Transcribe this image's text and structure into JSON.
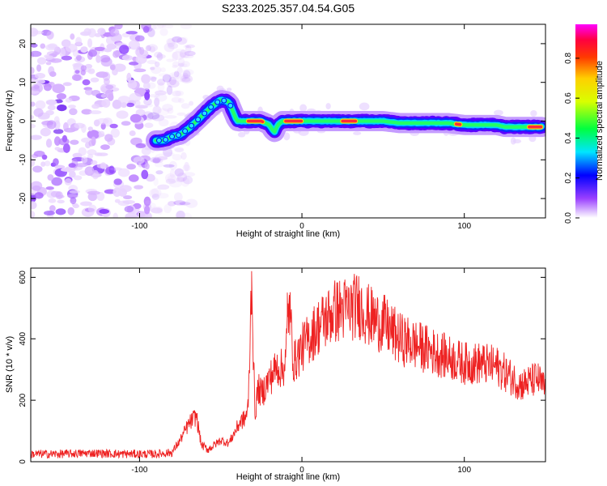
{
  "title": "S233.2025.357.04.54.G05",
  "chart_data": [
    {
      "type": "heatmap",
      "title": "S233.2025.357.04.54.G05",
      "xlabel": "Height of straight line (km)",
      "ylabel": "Frequency (Hz)",
      "xlim": [
        -167,
        150
      ],
      "ylim": [
        -25,
        25
      ],
      "xticks": [
        -100,
        0,
        100
      ],
      "xtick_labels": [
        "-100",
        "0",
        "100"
      ],
      "yticks": [
        -20,
        -10,
        0,
        10,
        20
      ],
      "ytick_labels": [
        "-20",
        "-10",
        "0",
        "10",
        "20"
      ],
      "ridge_x": [
        -90,
        -85,
        -80,
        -75,
        -70,
        -65,
        -60,
        -55,
        -50,
        -45,
        -40,
        -35,
        -30,
        -25,
        -20,
        -17,
        -15,
        -12,
        -10,
        -5,
        0,
        5,
        10,
        20,
        30,
        40,
        50,
        60,
        70,
        80,
        90,
        100,
        110,
        120,
        125,
        130,
        140,
        148
      ],
      "ridge_y": [
        -5,
        -5,
        -4,
        -3.5,
        -2,
        0,
        2,
        4,
        5.5,
        5,
        0,
        0,
        0,
        0,
        -1,
        -3,
        -1,
        0,
        0,
        0,
        0,
        0,
        0,
        0,
        0,
        0,
        0,
        -0.5,
        -0.5,
        -0.5,
        -0.5,
        -1,
        -1,
        -1,
        -1.5,
        -1.5,
        -1.5,
        -1.5
      ],
      "strong_segments": [
        [
          -33,
          -24
        ],
        [
          -10,
          0
        ],
        [
          25,
          33
        ],
        [
          95,
          98
        ],
        [
          140,
          148
        ]
      ],
      "noise_region": [
        -167,
        -80
      ],
      "colorbar": {
        "label": "Normalized spectral amplitude",
        "ticks": [
          0.0,
          0.2,
          0.4,
          0.6,
          0.8
        ],
        "tick_labels": [
          "0.0",
          "0.2",
          "0.4",
          "0.6",
          "0.8"
        ],
        "range": [
          0,
          0.97
        ],
        "colors": [
          "#ffffff",
          "#8000ff",
          "#0000ff",
          "#00ffff",
          "#00ff00",
          "#ffff00",
          "#ff8000",
          "#ff0000",
          "#ff00ff"
        ]
      }
    },
    {
      "type": "line",
      "xlabel": "Height of straight line (km)",
      "ylabel": "SNR (10 * v/v)",
      "xlim": [
        -167,
        150
      ],
      "ylim": [
        0,
        630
      ],
      "xticks": [
        -100,
        0,
        100
      ],
      "xtick_labels": [
        "-100",
        "0",
        "100"
      ],
      "yticks": [
        0,
        200,
        400,
        600
      ],
      "ytick_labels": [
        "0",
        "200",
        "400",
        "600"
      ],
      "color": "#ee2222",
      "series": [
        {
          "name": "SNR",
          "x": [
            -167,
            -150,
            -130,
            -110,
            -90,
            -80,
            -75,
            -70,
            -65,
            -62,
            -58,
            -55,
            -50,
            -45,
            -42,
            -40,
            -38,
            -35,
            -33,
            -31,
            -29,
            -27,
            -25,
            -20,
            -15,
            -12,
            -10,
            -8,
            -5,
            0,
            10,
            20,
            30,
            35,
            40,
            45,
            50,
            60,
            70,
            80,
            90,
            100,
            110,
            120,
            125,
            130,
            135,
            140,
            145,
            150
          ],
          "y": [
            25,
            25,
            28,
            25,
            25,
            30,
            70,
            120,
            150,
            55,
            40,
            50,
            70,
            60,
            90,
            110,
            130,
            140,
            180,
            600,
            150,
            240,
            220,
            270,
            310,
            300,
            330,
            520,
            320,
            370,
            440,
            490,
            500,
            510,
            480,
            460,
            450,
            400,
            380,
            360,
            340,
            320,
            320,
            310,
            290,
            270,
            250,
            260,
            270,
            235
          ]
        }
      ],
      "spikes": [
        {
          "x": -31,
          "y": 620
        },
        {
          "x": -9,
          "y": 550
        }
      ]
    }
  ]
}
